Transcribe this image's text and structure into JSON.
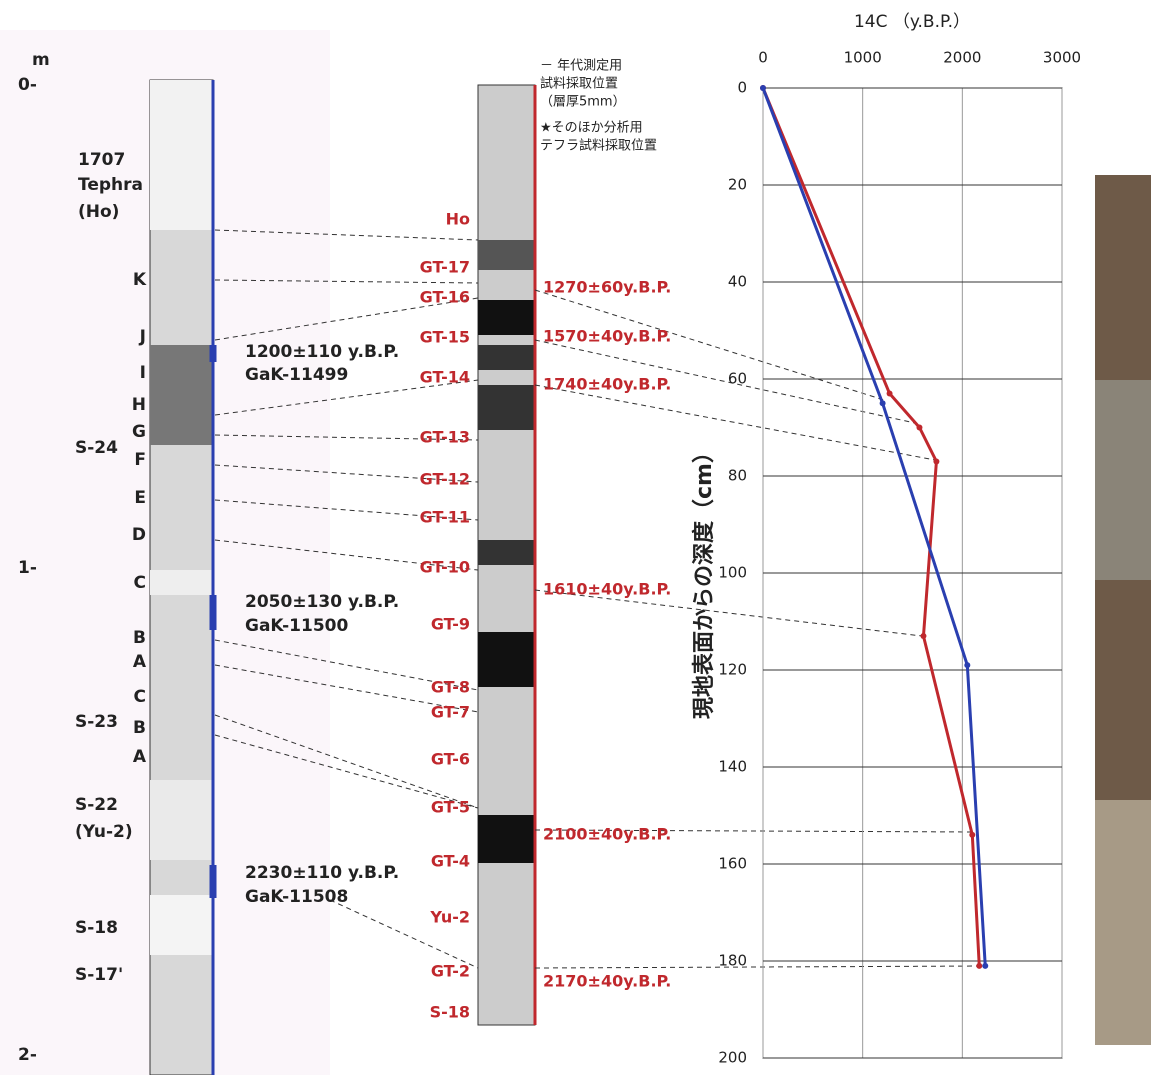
{
  "chart_data": {
    "type": "line",
    "title": "14C （y.B.P.）",
    "ylabel": "現地表面からの深度（cm）",
    "xlim": [
      0,
      3000
    ],
    "xticks": [
      0,
      1000,
      2000,
      3000
    ],
    "x_axis_position": "top",
    "ylim": [
      0,
      200
    ],
    "yticks": [
      0,
      20,
      40,
      60,
      80,
      100,
      120,
      140,
      160,
      180,
      200
    ],
    "y_inverted": true,
    "grid": true,
    "series": [
      {
        "color": "#c0282d",
        "x": [
          0,
          1270,
          1570,
          1740,
          1610,
          2100,
          2170
        ],
        "values": [
          0,
          63,
          70,
          77,
          113,
          154,
          181
        ]
      },
      {
        "color": "#2a3fb0",
        "x": [
          0,
          1200,
          2050,
          2230
        ],
        "values": [
          0,
          65,
          119,
          181
        ]
      }
    ]
  },
  "left_column": {
    "depth_labels": [
      "m",
      "0-",
      "1-",
      "2-"
    ],
    "tephra": [
      "1707",
      "Tephra",
      "(Ho)"
    ],
    "layers": [
      "K",
      "J",
      "I",
      "H",
      "G",
      "F",
      "E",
      "D",
      "C",
      "B",
      "A",
      "C",
      "B",
      "A"
    ],
    "units": [
      "S-24",
      "S-23",
      "S-22",
      "(Yu-2)",
      "S-18",
      "S-17'"
    ],
    "dates": [
      "1200±110 y.B.P.",
      "GaK-11499",
      "2050±130 y.B.P.",
      "GaK-11500",
      "2230±110 y.B.P.",
      "GaK-11508"
    ]
  },
  "middle_column": {
    "legend": [
      "－ 年代測定用",
      "試料採取位置",
      "（層厚5mm）",
      "★そのほか分析用",
      "テフラ試料採取位置"
    ],
    "layers": [
      "Ho",
      "GT-17",
      "GT-16",
      "GT-15",
      "GT-14",
      "GT-13",
      "GT-12",
      "GT-11",
      "GT-10",
      "GT-9",
      "GT-8",
      "GT-7",
      "GT-6",
      "GT-5",
      "GT-4",
      "Yu-2",
      "GT-2",
      "S-18"
    ],
    "dates": [
      "1270±60y.B.P.",
      "1570±40y.B.P.",
      "1740±40y.B.P.",
      "1610±40y.B.P.",
      "2100±40y.B.P.",
      "2170±40y.B.P."
    ]
  }
}
